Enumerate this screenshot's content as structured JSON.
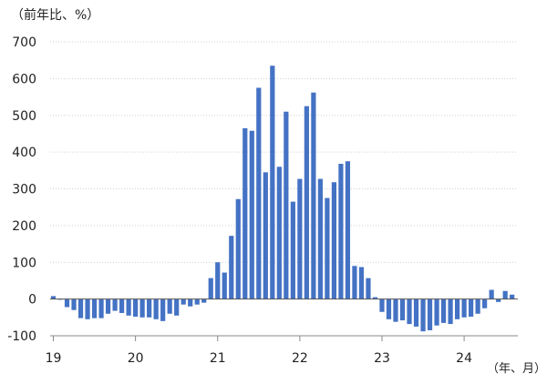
{
  "chart_data": {
    "type": "bar",
    "y_unit_label": "（前年比、%）",
    "x_unit_label": "（年、月）",
    "ylim": [
      -100,
      700
    ],
    "yticks": [
      700,
      600,
      500,
      400,
      300,
      200,
      100,
      0,
      -100
    ],
    "year_labels": [
      "19",
      "20",
      "21",
      "22",
      "23",
      "24"
    ],
    "grid": true,
    "bar_color": "#4472C4",
    "series": [
      {
        "name": "前年比",
        "values": [
          8,
          -2,
          -22,
          -30,
          -52,
          -55,
          -52,
          -52,
          -40,
          -32,
          -38,
          -45,
          -48,
          -50,
          -50,
          -55,
          -60,
          -40,
          -45,
          -15,
          -20,
          -15,
          -10,
          57,
          100,
          72,
          172,
          272,
          465,
          458,
          575,
          345,
          635,
          360,
          510,
          265,
          327,
          525,
          562,
          327,
          275,
          318,
          368,
          375,
          90,
          87,
          57,
          5,
          -35,
          -55,
          -62,
          -58,
          -68,
          -75,
          -88,
          -85,
          -72,
          -65,
          -68,
          -55,
          -50,
          -48,
          -40,
          -25,
          25,
          -8,
          22,
          12
        ]
      }
    ]
  }
}
